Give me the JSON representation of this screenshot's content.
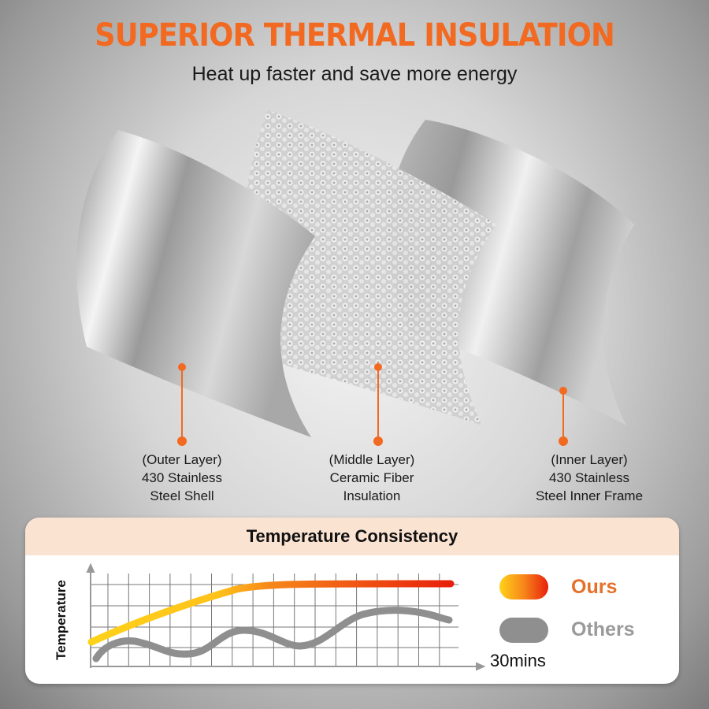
{
  "header": {
    "title": "SUPERIOR THERMAL INSULATION",
    "subtitle": "Heat up faster and save more energy"
  },
  "layers": [
    {
      "lines": [
        "(Outer Layer)",
        "430 Stainless",
        "Steel Shell"
      ]
    },
    {
      "lines": [
        "(Middle Layer)",
        "Ceramic Fiber",
        "Insulation"
      ]
    },
    {
      "lines": [
        "(Inner Layer)",
        "430 Stainless",
        "Steel Inner Frame"
      ]
    }
  ],
  "colors": {
    "accent": "#f26a21",
    "ours_start": "#ffd21a",
    "ours_end": "#e8200c",
    "others": "#8f8f8f",
    "header_band": "#fbe3d2"
  },
  "chart": {
    "title": "Temperature Consistency",
    "ylabel": "Temperature",
    "xlabel": "30mins",
    "legend": [
      {
        "label": "Ours"
      },
      {
        "label": "Others"
      }
    ]
  }
}
